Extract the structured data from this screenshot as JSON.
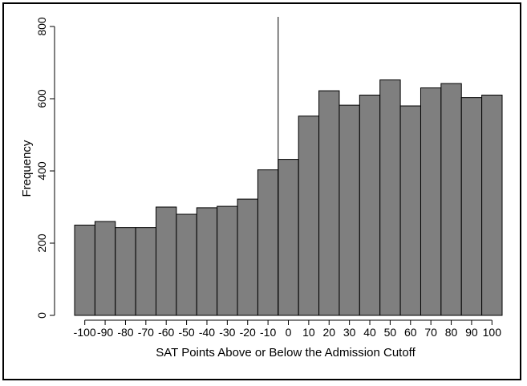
{
  "chart_data": {
    "type": "bar",
    "title": "",
    "xlabel": "SAT Points Above or Below the Admission Cutoff",
    "ylabel": "Frequency",
    "ylim": [
      0,
      800
    ],
    "xlim": [
      -105,
      105
    ],
    "bin_width": 10,
    "cutoff_line_x": -5,
    "grid": false,
    "bar_color": "#7f7f7f",
    "y_ticks": [
      0,
      200,
      400,
      600,
      800
    ],
    "x_ticks": [
      -100,
      -90,
      -80,
      -70,
      -60,
      -50,
      -40,
      -30,
      -20,
      -10,
      0,
      10,
      20,
      30,
      40,
      50,
      60,
      70,
      80,
      90,
      100
    ],
    "x_tick_labels": [
      "-100",
      "-90",
      "-80",
      "-70",
      "-60",
      "-50",
      "-40",
      "-30",
      "-20",
      "-10",
      "0",
      "10",
      "20",
      "30",
      "40",
      "50",
      "60",
      "70",
      "80",
      "90",
      "100"
    ],
    "bins": [
      -100,
      -90,
      -80,
      -70,
      -60,
      -50,
      -40,
      -30,
      -20,
      -10,
      0,
      10,
      20,
      30,
      40,
      50,
      60,
      70,
      80,
      90,
      100
    ],
    "values": [
      250,
      260,
      243,
      243,
      300,
      280,
      298,
      302,
      322,
      403,
      432,
      552,
      622,
      582,
      610,
      652,
      580,
      630,
      642,
      603,
      610
    ]
  }
}
